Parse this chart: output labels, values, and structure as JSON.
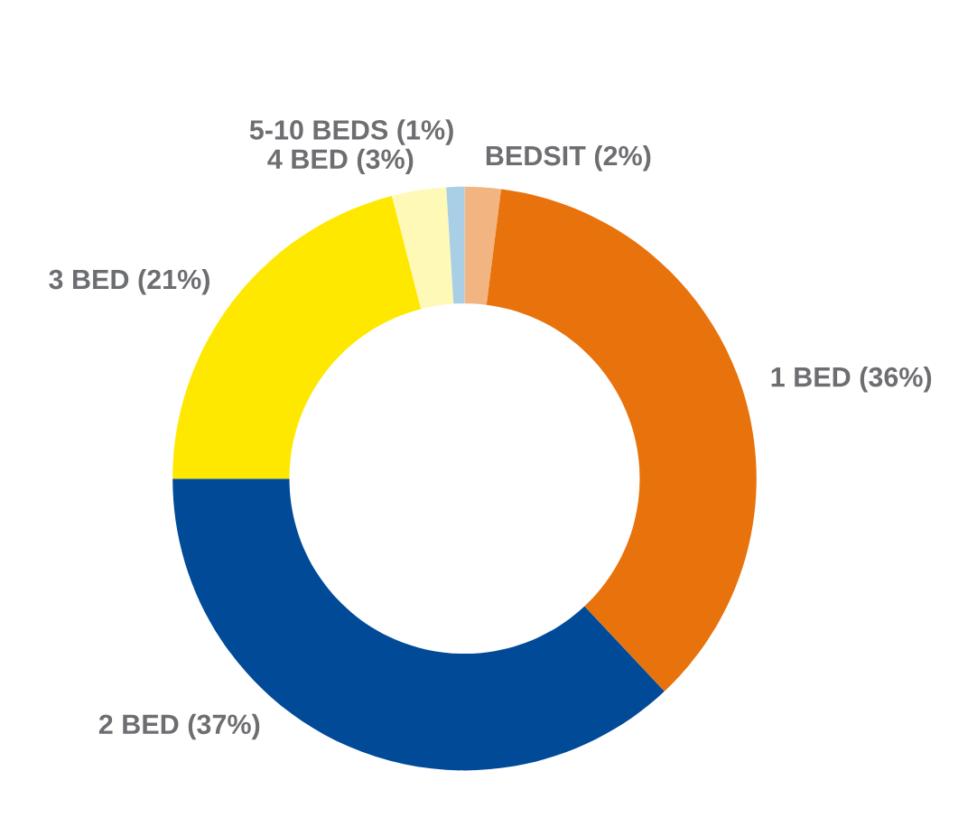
{
  "chart_data": {
    "type": "donut",
    "categories": [
      "BEDSIT (2%)",
      "1 BED (36%)",
      "2 BED (37%)",
      "3 BED (21%)",
      "4 BED (3%)",
      "5-10 BEDS (1%)"
    ],
    "values": [
      2,
      36,
      37,
      21,
      3,
      1
    ],
    "colors": [
      "#f2b582",
      "#e8720c",
      "#004a98",
      "#ffe800",
      "#fff9b8",
      "#a8cfe6"
    ]
  }
}
